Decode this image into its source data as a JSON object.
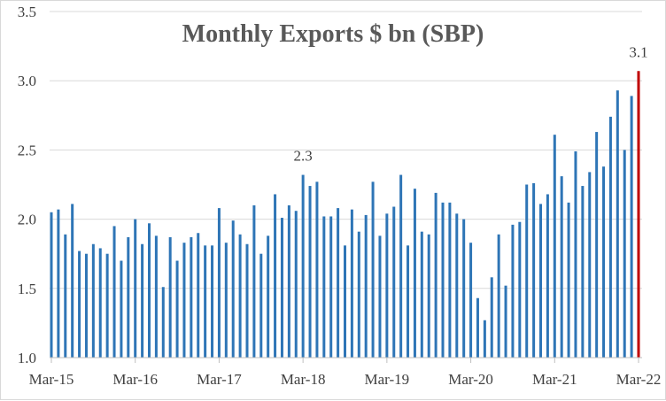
{
  "chart_data": {
    "type": "bar",
    "title": "Monthly Exports $ bn (SBP)",
    "xlabel": "",
    "ylabel": "",
    "ylim": [
      1.0,
      3.5
    ],
    "y_ticks": [
      "1.0",
      "1.5",
      "2.0",
      "2.5",
      "3.0",
      "3.5"
    ],
    "x_tick_labels": [
      "Mar-15",
      "Mar-16",
      "Mar-17",
      "Mar-18",
      "Mar-19",
      "Mar-20",
      "Mar-21",
      "Mar-22"
    ],
    "grid": true,
    "legend": "none",
    "colors": {
      "bar": "#2e75b6",
      "highlight": "#c00000"
    },
    "series": [
      {
        "values": [
          2.05,
          2.07,
          1.89,
          2.11,
          1.77,
          1.75,
          1.82,
          1.79,
          1.75,
          1.95,
          1.7,
          1.87,
          2.0,
          1.82,
          1.97,
          1.88,
          1.51,
          1.87,
          1.7,
          1.83,
          1.87,
          1.9,
          1.81,
          1.81,
          2.08,
          1.83,
          1.99,
          1.89,
          1.82,
          2.1,
          1.75,
          1.88,
          2.18,
          2.01,
          2.1,
          2.06,
          2.32,
          2.24,
          2.27,
          2.02,
          2.02,
          2.08,
          1.81,
          2.07,
          1.91,
          2.03,
          2.27,
          1.88,
          2.04,
          2.09,
          2.32,
          1.81,
          2.22,
          1.91,
          1.89,
          2.19,
          2.12,
          2.12,
          2.04,
          2.0,
          1.83,
          1.43,
          1.27,
          1.58,
          1.89,
          1.52,
          1.96,
          1.98,
          2.25,
          2.26,
          2.11,
          2.18,
          2.61,
          2.31,
          2.12,
          2.49,
          2.24,
          2.34,
          2.63,
          2.38,
          2.74,
          2.93,
          2.5,
          2.89,
          3.07
        ]
      }
    ],
    "annotations": [
      {
        "text": "2.3",
        "index": 36
      },
      {
        "text": "3.1",
        "index": 84
      }
    ]
  }
}
